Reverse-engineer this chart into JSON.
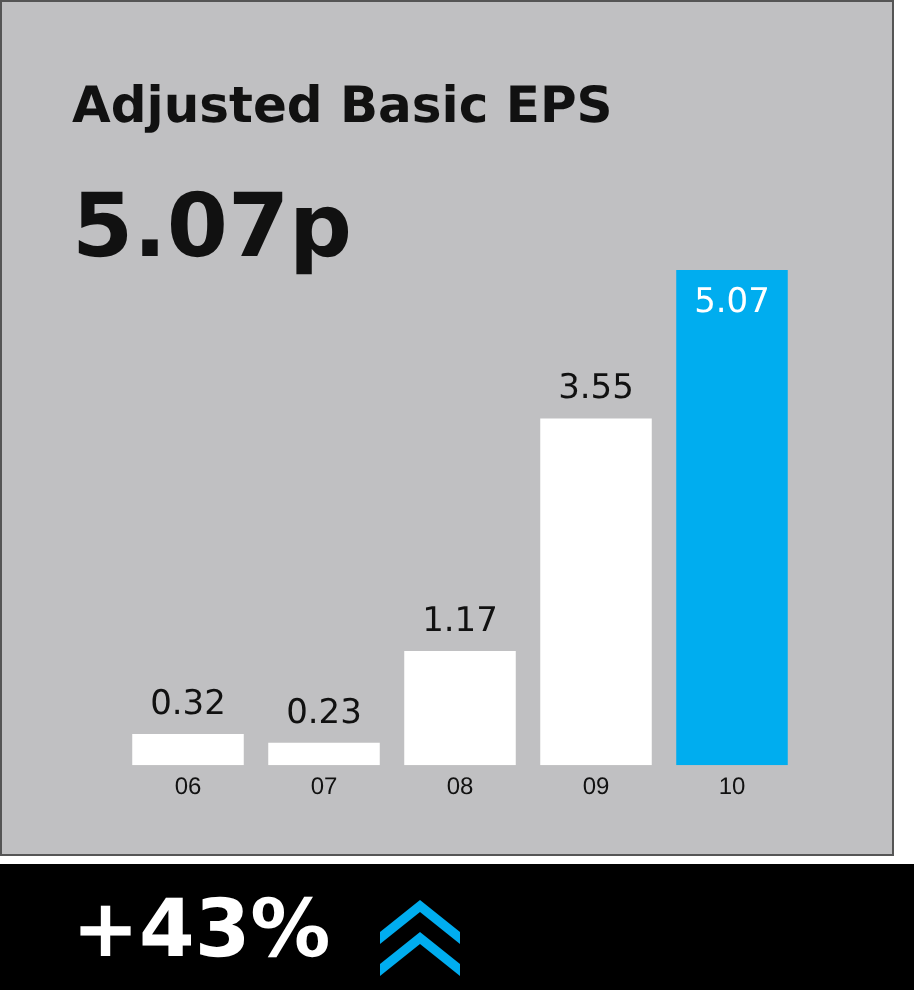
{
  "chart_data": {
    "type": "bar",
    "title": "Adjusted Basic EPS",
    "subtitle": "5.07p",
    "categories": [
      "06",
      "07",
      "08",
      "09",
      "10"
    ],
    "values": [
      0.32,
      0.23,
      1.17,
      3.55,
      5.07
    ],
    "colors": [
      "#ffffff",
      "#ffffff",
      "#ffffff",
      "#ffffff",
      "#00adef"
    ],
    "data_labels": true,
    "grid": false,
    "legend": false,
    "annotations": [
      "+43%"
    ]
  }
}
